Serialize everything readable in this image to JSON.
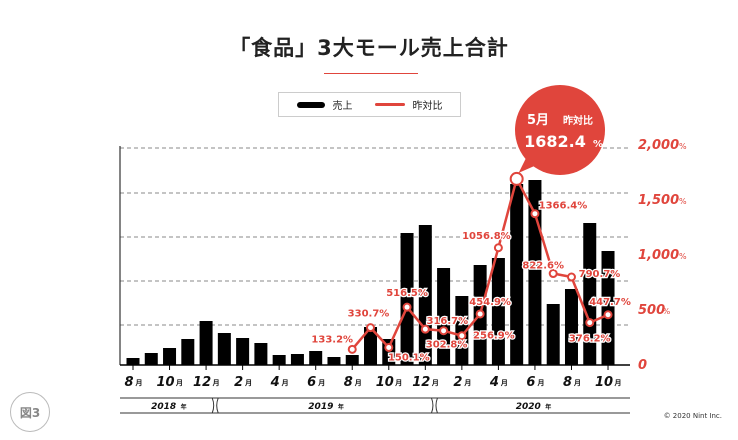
{
  "title": "「食品」3大モール売上合計",
  "legend": {
    "bar": "売上",
    "line": "昨対比"
  },
  "badge": "図3",
  "copyright": "© 2020 Nint Inc.",
  "callout": {
    "month": "5月",
    "label": "昨対比",
    "value": "1682.4",
    "unit": "%"
  },
  "colors": {
    "bar": "#000000",
    "line": "#e0453c",
    "grid": "#888888"
  },
  "chart_data": {
    "type": "bar+line",
    "title": "「食品」3大モール売上合計",
    "months": [
      "8",
      "9",
      "10",
      "11",
      "12",
      "1",
      "2",
      "3",
      "4",
      "5",
      "6",
      "7",
      "8",
      "9",
      "10",
      "11",
      "12",
      "1",
      "2",
      "3",
      "4",
      "5",
      "6",
      "7",
      "8",
      "9",
      "10"
    ],
    "month_suffix": "月",
    "tick_labels": [
      "8",
      "10",
      "12",
      "2",
      "4",
      "6",
      "8",
      "10",
      "12",
      "2",
      "4",
      "6",
      "8",
      "10"
    ],
    "years": [
      {
        "label": "2018",
        "suffix": "年",
        "start": 0,
        "end": 4
      },
      {
        "label": "2019",
        "suffix": "年",
        "start": 5,
        "end": 16
      },
      {
        "label": "2020",
        "suffix": "年",
        "start": 17,
        "end": 26
      }
    ],
    "series": [
      {
        "name": "売上",
        "type": "bar",
        "axis": "left",
        "note": "relative index, no axis labels",
        "values": [
          7,
          12,
          17,
          26,
          44,
          32,
          27,
          22,
          10,
          11,
          14,
          8,
          10,
          38,
          26,
          132,
          140,
          97,
          69,
          100,
          107,
          181,
          185,
          61,
          76,
          142,
          114
        ]
      },
      {
        "name": "昨対比",
        "type": "line",
        "axis": "right",
        "start_index": 12,
        "values": [
          133.2,
          330.7,
          150.1,
          516.5,
          316.7,
          302.8,
          256.9,
          454.9,
          1056.8,
          1682.4,
          1366.4,
          822.6,
          790.7,
          376.2,
          447.7
        ],
        "labels": [
          "133.2%",
          "330.7%",
          "150.1%",
          "516.5%",
          "316.7%",
          "302.8%",
          "256.9%",
          "454.9%",
          "1056.8%",
          "1682.4%",
          "1366.4%",
          "822.6%",
          "790.7%",
          "376.2%",
          "447.7%"
        ]
      }
    ],
    "left_ylim": [
      0,
      220
    ],
    "right_ylim": [
      0,
      2000
    ],
    "right_ticks": [
      "0",
      "500%",
      "1,000%",
      "1,500%",
      "2,000%"
    ],
    "right_tick_values": [
      0,
      500,
      1000,
      1500,
      2000
    ],
    "grid": true
  }
}
